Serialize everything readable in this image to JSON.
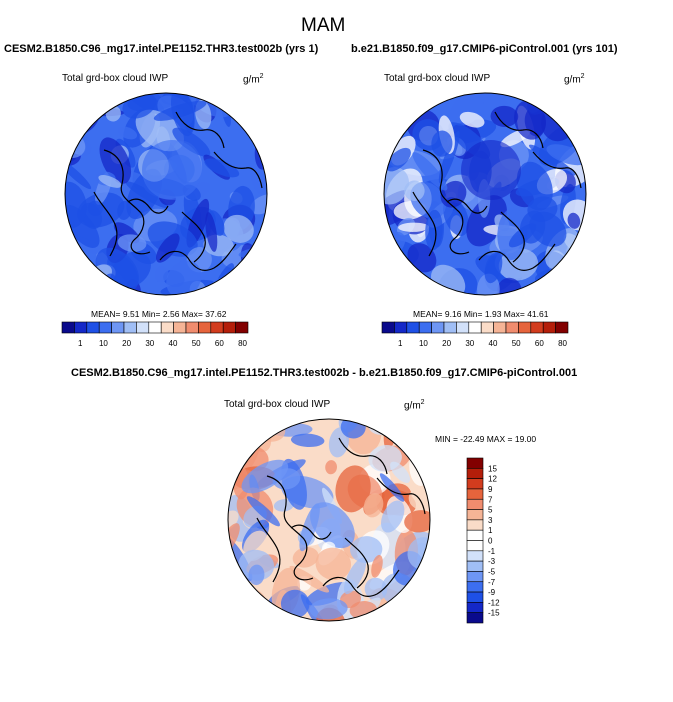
{
  "figure": {
    "title": "MAM",
    "diff_title": "CESM2.B1850.C96_mg17.intel.PE1152.THR3.test002b - b.e21.B1850.f09_g17.CMIP6-piControl.001"
  },
  "chart_data": [
    {
      "type": "heatmap",
      "projection": "north-polar-stereographic",
      "case": "CESM2.B1850.C96_mg17.intel.PE1152.THR3.test002b (yrs 1)",
      "variable": "Total grd-box cloud IWP",
      "units": "g/m",
      "units_exp": "2",
      "stats": {
        "mean": "9.51",
        "min": "2.56",
        "max": "37.62"
      },
      "stats_text": {
        "mean_lbl": "MEAN=",
        "mean": "9.51",
        "min_lbl": "Min=",
        "min": "2.56",
        "max_lbl": "Max=",
        "max": "37.62"
      },
      "colorbar": {
        "orientation": "horizontal",
        "levels": [
          "1",
          "10",
          "20",
          "30",
          "40",
          "50",
          "60",
          "80"
        ],
        "colors": [
          "#0a0a8c",
          "#1428c8",
          "#1e50e6",
          "#3c6ef0",
          "#6e96f5",
          "#a0bef5",
          "#d2e1fa",
          "#ffffff",
          "#fadcc8",
          "#f5b496",
          "#f08c6e",
          "#e6643c",
          "#d23c1e",
          "#b41e0a",
          "#820000"
        ]
      }
    },
    {
      "type": "heatmap",
      "projection": "north-polar-stereographic",
      "case": "b.e21.B1850.f09_g17.CMIP6-piControl.001 (yrs 101)",
      "variable": "Total grd-box cloud IWP",
      "units": "g/m",
      "units_exp": "2",
      "stats": {
        "mean": "9.16",
        "min": "1.93",
        "max": "41.61"
      },
      "stats_text": {
        "mean_lbl": "MEAN=",
        "mean": "9.16",
        "min_lbl": "Min=",
        "min": "1.93",
        "max_lbl": "Max=",
        "max": "41.61"
      },
      "colorbar": {
        "orientation": "horizontal",
        "levels": [
          "1",
          "10",
          "20",
          "30",
          "40",
          "50",
          "60",
          "80"
        ],
        "colors": [
          "#0a0a8c",
          "#1428c8",
          "#1e50e6",
          "#3c6ef0",
          "#6e96f5",
          "#a0bef5",
          "#d2e1fa",
          "#ffffff",
          "#fadcc8",
          "#f5b496",
          "#f08c6e",
          "#e6643c",
          "#d23c1e",
          "#b41e0a",
          "#820000"
        ]
      }
    },
    {
      "type": "heatmap",
      "projection": "north-polar-stereographic",
      "case": "difference",
      "variable": "Total grd-box cloud IWP",
      "units": "g/m",
      "units_exp": "2",
      "stats": {
        "min": "-22.49",
        "max": "19.00"
      },
      "minmax_text": "MIN = -22.49 MAX =  19.00",
      "colorbar": {
        "orientation": "vertical",
        "levels": [
          "15",
          "12",
          "9",
          "7",
          "5",
          "3",
          "1",
          "0",
          "-1",
          "-3",
          "-5",
          "-7",
          "-9",
          "-12",
          "-15"
        ],
        "colors": [
          "#820000",
          "#b41e0a",
          "#d23c1e",
          "#e6643c",
          "#f08c6e",
          "#f5b496",
          "#fadcc8",
          "#ffffff",
          "#ffffff",
          "#d2e1fa",
          "#a0bef5",
          "#6e96f5",
          "#3c6ef0",
          "#1e50e6",
          "#1428c8",
          "#0a0a8c"
        ]
      }
    }
  ]
}
